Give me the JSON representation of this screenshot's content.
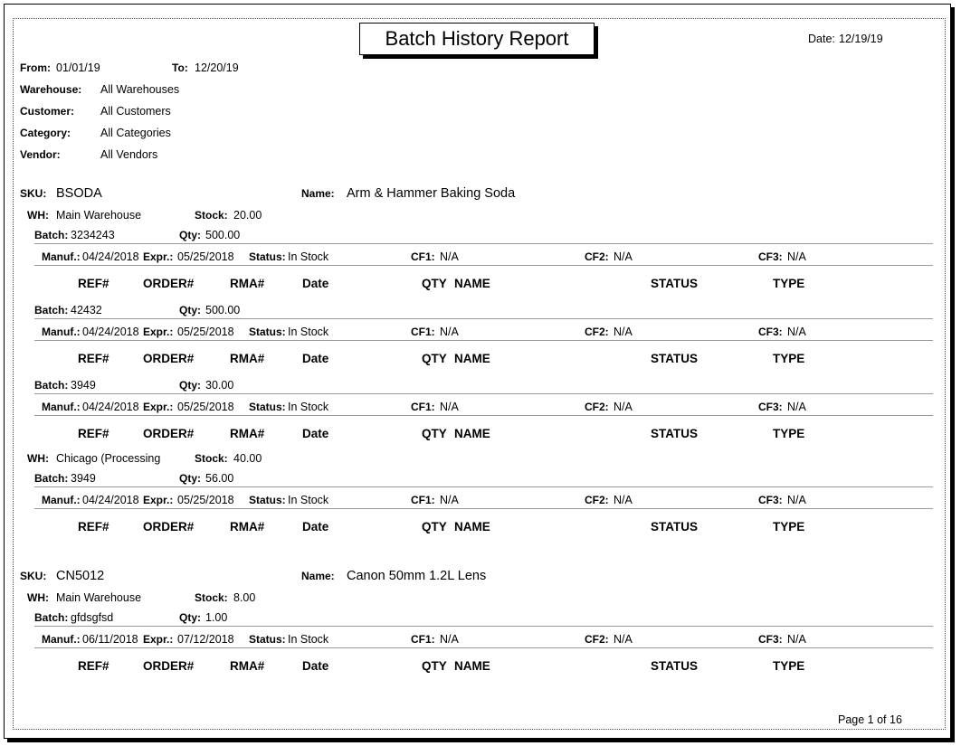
{
  "title": "Batch History Report",
  "date": {
    "label": "Date:",
    "value": "12/19/19"
  },
  "range": {
    "from_label": "From:",
    "from": "01/01/19",
    "to_label": "To:",
    "to": "12/20/19"
  },
  "filters": [
    {
      "label": "Warehouse:",
      "value": "All Warehouses"
    },
    {
      "label": "Customer:",
      "value": "All Customers"
    },
    {
      "label": "Category:",
      "value": "All Categories"
    },
    {
      "label": "Vendor:",
      "value": "All Vendors"
    }
  ],
  "labels": {
    "sku": "SKU:",
    "name": "Name:",
    "wh": "WH:",
    "stock": "Stock:",
    "batch": "Batch:",
    "qty": "Qty:",
    "manuf": "Manuf.:",
    "expr": "Expr.:",
    "status": "Status:",
    "cf1": "CF1:",
    "cf2": "CF2:",
    "cf3": "CF3:"
  },
  "columns": [
    "REF#",
    "ORDER#",
    "RMA#",
    "Date",
    "QTY",
    "NAME",
    "STATUS",
    "TYPE"
  ],
  "skus": [
    {
      "sku": "BSODA",
      "name": "Arm & Hammer Baking Soda",
      "warehouses": [
        {
          "wh": "Main Warehouse",
          "stock": "20.00",
          "batches": [
            {
              "batch": "3234243",
              "qty": "500.00",
              "manuf": "04/24/2018",
              "expr": "05/25/2018",
              "status": "In Stock",
              "cf1": "N/A",
              "cf2": "N/A",
              "cf3": "N/A"
            },
            {
              "batch": "42432",
              "qty": "500.00",
              "manuf": "04/24/2018",
              "expr": "05/25/2018",
              "status": "In Stock",
              "cf1": "N/A",
              "cf2": "N/A",
              "cf3": "N/A"
            },
            {
              "batch": "3949",
              "qty": "30.00",
              "manuf": "04/24/2018",
              "expr": "05/25/2018",
              "status": "In Stock",
              "cf1": "N/A",
              "cf2": "N/A",
              "cf3": "N/A"
            }
          ]
        },
        {
          "wh": "Chicago (Processing",
          "stock": "40.00",
          "batches": [
            {
              "batch": "3949",
              "qty": "56.00",
              "manuf": "04/24/2018",
              "expr": "05/25/2018",
              "status": "In Stock",
              "cf1": "N/A",
              "cf2": "N/A",
              "cf3": "N/A"
            }
          ]
        }
      ]
    },
    {
      "sku": "CN5012",
      "name": "Canon 50mm 1.2L Lens",
      "warehouses": [
        {
          "wh": "Main Warehouse",
          "stock": "8.00",
          "batches": [
            {
              "batch": "gfdsgfsd",
              "qty": "1.00",
              "manuf": "06/11/2018",
              "expr": "07/12/2018",
              "status": "In Stock",
              "cf1": "N/A",
              "cf2": "N/A",
              "cf3": "N/A"
            }
          ]
        }
      ]
    }
  ],
  "footer": "Page 1 of 16"
}
